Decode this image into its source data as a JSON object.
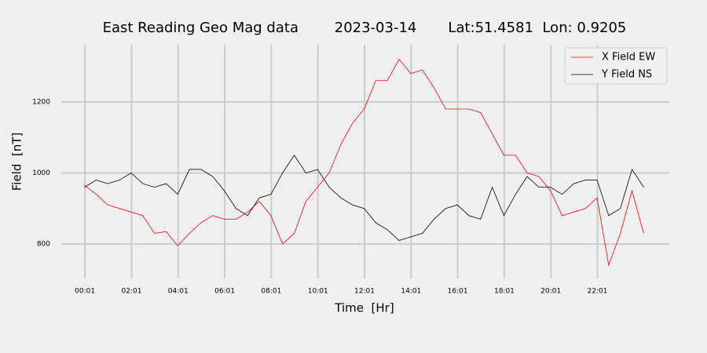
{
  "chart_data": {
    "type": "line",
    "title": "East Reading Geo Mag data        2023-03-14       Lat:51.4581  Lon: 0.9205",
    "xlabel": "Time  [Hr]",
    "ylabel": "Field  [nT]",
    "x": [
      0,
      0.5,
      1,
      1.5,
      2,
      2.5,
      3,
      3.5,
      4,
      4.5,
      5,
      5.5,
      6,
      6.5,
      7,
      7.5,
      8,
      8.5,
      9,
      9.5,
      10,
      10.5,
      11,
      11.5,
      12,
      12.5,
      13,
      13.5,
      14,
      14.5,
      15,
      15.5,
      16,
      16.5,
      17,
      17.5,
      18,
      18.5,
      19,
      19.5,
      20,
      20.5,
      21,
      21.5,
      22,
      22.5,
      23,
      23.5,
      24
    ],
    "series": [
      {
        "name": "X Field EW",
        "color": "#ff0000",
        "values": [
          965,
          940,
          910,
          900,
          890,
          880,
          830,
          835,
          795,
          830,
          860,
          880,
          870,
          870,
          890,
          920,
          880,
          800,
          830,
          920,
          960,
          1000,
          1080,
          1140,
          1180,
          1260,
          1260,
          1320,
          1280,
          1290,
          1240,
          1180,
          1180,
          1180,
          1170,
          1110,
          1050,
          1050,
          1000,
          990,
          950,
          880,
          890,
          900,
          930,
          740,
          830,
          950,
          830
        ]
      },
      {
        "name": "Y Field NS",
        "color": "#000000",
        "values": [
          960,
          980,
          970,
          980,
          1000,
          970,
          960,
          970,
          940,
          1010,
          1010,
          990,
          950,
          900,
          880,
          930,
          940,
          1000,
          1050,
          1000,
          1010,
          960,
          930,
          910,
          900,
          860,
          840,
          810,
          820,
          830,
          870,
          900,
          910,
          880,
          870,
          960,
          880,
          940,
          990,
          960,
          960,
          940,
          970,
          980,
          980,
          880,
          900,
          1010,
          960
        ]
      }
    ],
    "xlim": [
      -1.0,
      25.1
    ],
    "xticks": [
      {
        "value": 0.0167,
        "label": "00:01"
      },
      {
        "value": 2.0167,
        "label": "02:01"
      },
      {
        "value": 4.0167,
        "label": "04:01"
      },
      {
        "value": 6.0167,
        "label": "06:01"
      },
      {
        "value": 8.0167,
        "label": "08:01"
      },
      {
        "value": 10.0167,
        "label": "10:01"
      },
      {
        "value": 12.0167,
        "label": "12:01"
      },
      {
        "value": 14.0167,
        "label": "14:01"
      },
      {
        "value": 16.0167,
        "label": "16:01"
      },
      {
        "value": 18.0167,
        "label": "18:01"
      },
      {
        "value": 20.0167,
        "label": "20:01"
      },
      {
        "value": 22.0167,
        "label": "22:01"
      }
    ],
    "ylim": [
      703,
      1361
    ],
    "yticks": [
      800,
      1000,
      1200
    ],
    "grid": true,
    "legend": "upper right"
  }
}
